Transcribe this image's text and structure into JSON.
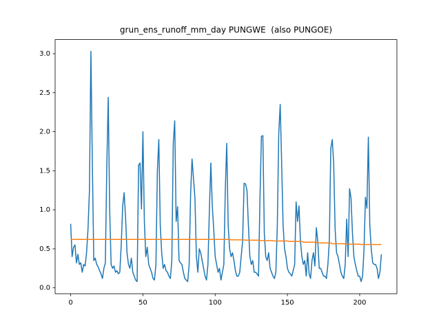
{
  "chart_data": {
    "type": "line",
    "title": "grun_ens_runoff_mm_day PUNGWE  (also PUNGOE)",
    "x": [
      0,
      1,
      2,
      3,
      4,
      5,
      6,
      7,
      8,
      9,
      10,
      11,
      12,
      13,
      14,
      15,
      16,
      17,
      18,
      19,
      20,
      21,
      22,
      23,
      24,
      25,
      26,
      27,
      28,
      29,
      30,
      31,
      32,
      33,
      34,
      35,
      36,
      37,
      38,
      39,
      40,
      41,
      42,
      43,
      44,
      45,
      46,
      47,
      48,
      49,
      50,
      51,
      52,
      53,
      54,
      55,
      56,
      57,
      58,
      59,
      60,
      61,
      62,
      63,
      64,
      65,
      66,
      67,
      68,
      69,
      70,
      71,
      72,
      73,
      74,
      75,
      76,
      77,
      78,
      79,
      80,
      81,
      82,
      83,
      84,
      85,
      86,
      87,
      88,
      89,
      90,
      91,
      92,
      93,
      94,
      95,
      96,
      97,
      98,
      99,
      100,
      101,
      102,
      103,
      104,
      105,
      106,
      107,
      108,
      109,
      110,
      111,
      112,
      113,
      114,
      115,
      116,
      117,
      118,
      119,
      120,
      121,
      122,
      123,
      124,
      125,
      126,
      127,
      128,
      129,
      130,
      131,
      132,
      133,
      134,
      135,
      136,
      137,
      138,
      139,
      140,
      141,
      142,
      143,
      144,
      145,
      146,
      147,
      148,
      149,
      150,
      151,
      152,
      153,
      154,
      155,
      156,
      157,
      158,
      159,
      160,
      161,
      162,
      163,
      164,
      165,
      166,
      167,
      168,
      169,
      170,
      171,
      172,
      173,
      174,
      175,
      176,
      177,
      178,
      179,
      180,
      181,
      182,
      183,
      184,
      185,
      186,
      187,
      188,
      189,
      190,
      191,
      192,
      193,
      194,
      195,
      196,
      197,
      198,
      199,
      200,
      201,
      202,
      203,
      204,
      205,
      206,
      207,
      208,
      209,
      210,
      211,
      212,
      213,
      214,
      215
    ],
    "series": [
      {
        "color": "#1f77b4",
        "values": [
          0.82,
          0.4,
          0.52,
          0.55,
          0.32,
          0.43,
          0.3,
          0.32,
          0.2,
          0.3,
          0.28,
          0.45,
          0.75,
          1.25,
          3.03,
          1.6,
          0.35,
          0.38,
          0.3,
          0.27,
          0.22,
          0.18,
          0.12,
          0.25,
          0.32,
          1.55,
          2.44,
          1.0,
          0.3,
          0.25,
          0.28,
          0.2,
          0.22,
          0.18,
          0.2,
          0.55,
          1.05,
          1.22,
          0.9,
          0.45,
          0.3,
          0.25,
          0.38,
          0.2,
          0.15,
          0.1,
          0.08,
          1.57,
          1.6,
          1.01,
          2.0,
          0.85,
          0.4,
          0.52,
          0.3,
          0.25,
          0.2,
          0.12,
          0.1,
          0.3,
          1.5,
          1.9,
          0.8,
          0.45,
          0.25,
          0.3,
          0.22,
          0.2,
          0.15,
          0.12,
          0.35,
          1.85,
          2.14,
          0.85,
          1.04,
          0.35,
          0.32,
          0.3,
          0.2,
          0.12,
          0.1,
          0.08,
          0.3,
          1.2,
          1.65,
          1.4,
          1.15,
          0.4,
          0.2,
          0.5,
          0.45,
          0.35,
          0.25,
          0.15,
          0.1,
          0.3,
          1.0,
          1.6,
          1.05,
          0.75,
          0.4,
          0.3,
          0.2,
          0.25,
          0.1,
          0.2,
          0.3,
          1.25,
          1.85,
          0.8,
          0.5,
          0.4,
          0.45,
          0.35,
          0.22,
          0.15,
          0.15,
          0.2,
          0.4,
          0.6,
          1.34,
          1.33,
          1.25,
          0.8,
          0.4,
          0.3,
          0.35,
          0.2,
          0.2,
          0.18,
          0.15,
          1.15,
          1.94,
          1.95,
          0.7,
          0.4,
          0.35,
          0.45,
          0.25,
          0.2,
          0.15,
          0.12,
          0.2,
          0.8,
          1.98,
          2.35,
          1.6,
          0.8,
          0.5,
          0.4,
          0.25,
          0.2,
          0.18,
          0.15,
          0.22,
          0.3,
          1.1,
          0.85,
          1.05,
          0.6,
          0.4,
          0.3,
          0.35,
          0.15,
          0.45,
          0.18,
          0.12,
          0.35,
          0.45,
          0.28,
          0.77,
          0.6,
          0.25,
          0.25,
          0.2,
          0.15,
          0.15,
          0.12,
          0.3,
          0.6,
          1.78,
          1.9,
          1.6,
          0.75,
          0.45,
          0.4,
          0.3,
          0.2,
          0.15,
          0.12,
          0.3,
          0.88,
          0.4,
          1.27,
          1.15,
          0.7,
          0.4,
          0.3,
          0.22,
          0.15,
          0.15,
          0.08,
          0.15,
          0.5,
          1.16,
          1.02,
          1.93,
          0.8,
          0.5,
          0.32,
          0.3,
          0.3,
          0.25,
          0.12,
          0.2,
          0.43
        ]
      },
      {
        "color": "#ff7f0e",
        "values": [
          0.62,
          0.62,
          0.62,
          0.62,
          0.62,
          0.62,
          0.62,
          0.62,
          0.62,
          0.62,
          0.62,
          0.62,
          0.62,
          0.62,
          0.62,
          0.62,
          0.62,
          0.62,
          0.62,
          0.62,
          0.62,
          0.62,
          0.62,
          0.62,
          0.62,
          0.62,
          0.62,
          0.62,
          0.62,
          0.62,
          0.62,
          0.62,
          0.62,
          0.62,
          0.62,
          0.62,
          0.62,
          0.62,
          0.62,
          0.62,
          0.62,
          0.62,
          0.62,
          0.62,
          0.62,
          0.62,
          0.62,
          0.62,
          0.62,
          0.62,
          0.62,
          0.62,
          0.62,
          0.62,
          0.62,
          0.62,
          0.62,
          0.62,
          0.62,
          0.62,
          0.62,
          0.62,
          0.62,
          0.62,
          0.62,
          0.62,
          0.62,
          0.62,
          0.62,
          0.62,
          0.62,
          0.62,
          0.62,
          0.62,
          0.62,
          0.62,
          0.62,
          0.62,
          0.62,
          0.62,
          0.62,
          0.62,
          0.62,
          0.62,
          0.62,
          0.62,
          0.62,
          0.62,
          0.62,
          0.62,
          0.62,
          0.62,
          0.62,
          0.62,
          0.62,
          0.62,
          0.62,
          0.62,
          0.62,
          0.62,
          0.62,
          0.62,
          0.62,
          0.62,
          0.62,
          0.62,
          0.62,
          0.62,
          0.62,
          0.62,
          0.62,
          0.615,
          0.615,
          0.615,
          0.615,
          0.615,
          0.615,
          0.615,
          0.615,
          0.615,
          0.615,
          0.61,
          0.61,
          0.61,
          0.61,
          0.61,
          0.61,
          0.61,
          0.61,
          0.61,
          0.61,
          0.605,
          0.605,
          0.605,
          0.605,
          0.605,
          0.605,
          0.605,
          0.605,
          0.605,
          0.605,
          0.6,
          0.6,
          0.6,
          0.6,
          0.6,
          0.6,
          0.6,
          0.6,
          0.6,
          0.6,
          0.595,
          0.595,
          0.595,
          0.595,
          0.595,
          0.595,
          0.595,
          0.595,
          0.595,
          0.595,
          0.585,
          0.585,
          0.585,
          0.585,
          0.585,
          0.585,
          0.585,
          0.585,
          0.585,
          0.585,
          0.575,
          0.575,
          0.575,
          0.575,
          0.575,
          0.575,
          0.575,
          0.575,
          0.575,
          0.575,
          0.565,
          0.565,
          0.565,
          0.565,
          0.565,
          0.565,
          0.565,
          0.565,
          0.565,
          0.565,
          0.56,
          0.56,
          0.56,
          0.56,
          0.56,
          0.56,
          0.56,
          0.56,
          0.56,
          0.56,
          0.555,
          0.555,
          0.555,
          0.555,
          0.555,
          0.555,
          0.555,
          0.555,
          0.555,
          0.555,
          0.555,
          0.555,
          0.555,
          0.555,
          0.555
        ]
      }
    ],
    "xlim": [
      -10.75,
      225.75
    ],
    "xticks": [
      0,
      50,
      100,
      150,
      200
    ],
    "ylim": [
      -0.075,
      3.18
    ],
    "yticks": [
      {
        "value": 0,
        "label": "0.0"
      },
      0.5,
      {
        "value": 1,
        "label": "1.0"
      },
      1.5,
      {
        "value": 2,
        "label": "2.0"
      },
      2.5,
      {
        "value": 3,
        "label": "3.0"
      }
    ],
    "grid": false
  }
}
